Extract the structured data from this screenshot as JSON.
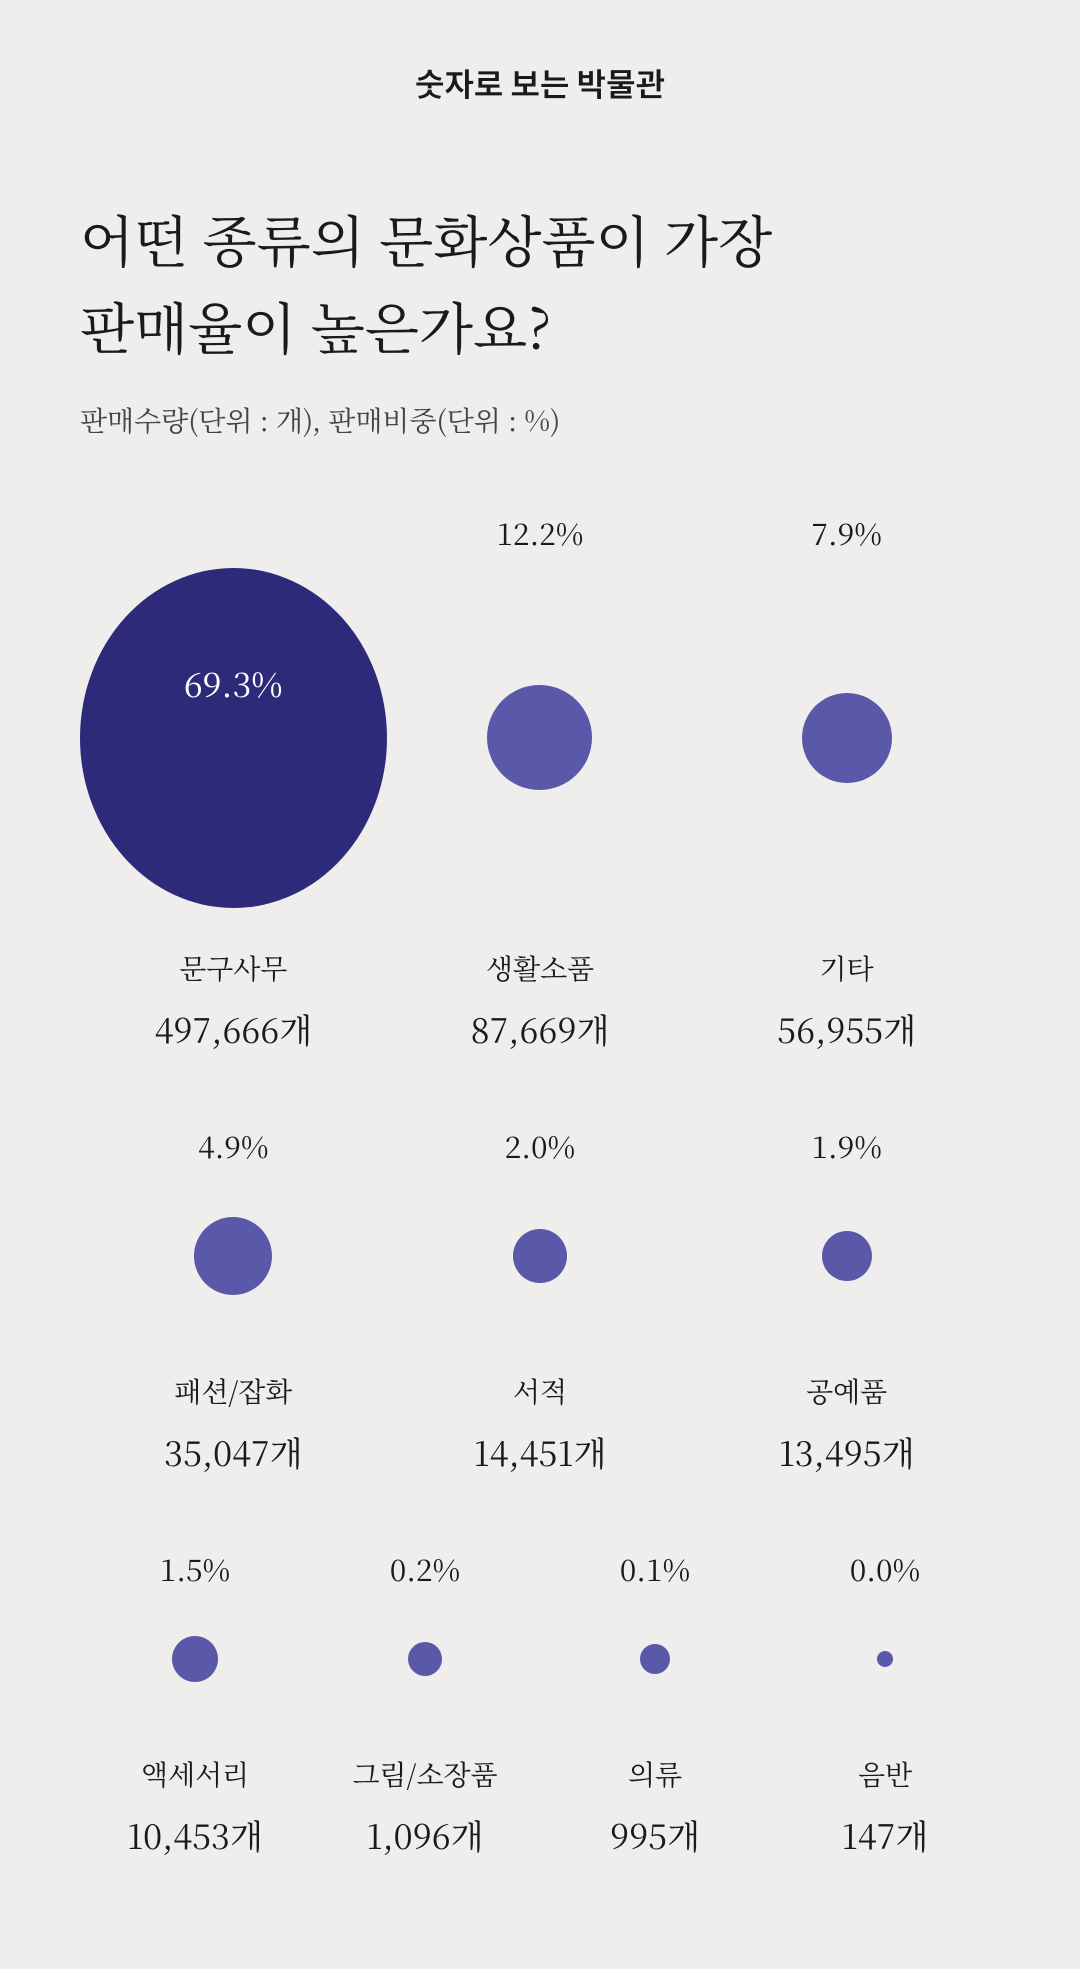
{
  "header_small": "숫자로 보는 박물관",
  "main_title": "어떤 종류의 문화상품이 가장\n판매율이 높은가요?",
  "subtitle": "판매수량(단위 : 개), 판매비중(단위 : %)",
  "background_color": "#f0eeed",
  "colors": {
    "big_circle": "#2e2a7a",
    "small_circle": "#5a58a8",
    "text": "#1a1a1a",
    "percent_inside": "#ffffff"
  },
  "rows": [
    {
      "cols": 3,
      "circle_box_height": 340,
      "items": [
        {
          "percent": "69.3%",
          "category": "문구사무",
          "count": "497,666개",
          "diameter": 340,
          "fill": "#2e2a7a",
          "percent_inside": true
        },
        {
          "percent": "12.2%",
          "category": "생활소품",
          "count": "87,669개",
          "diameter": 105,
          "fill": "#5a58a8",
          "percent_inside": false
        },
        {
          "percent": "7.9%",
          "category": "기타",
          "count": "56,955개",
          "diameter": 90,
          "fill": "#5a58a8",
          "percent_inside": false
        }
      ]
    },
    {
      "cols": 3,
      "circle_box_height": 150,
      "items": [
        {
          "percent": "4.9%",
          "category": "패션/잡화",
          "count": "35,047개",
          "diameter": 78,
          "fill": "#5a58a8",
          "percent_inside": false
        },
        {
          "percent": "2.0%",
          "category": "서적",
          "count": "14,451개",
          "diameter": 54,
          "fill": "#5a58a8",
          "percent_inside": false
        },
        {
          "percent": "1.9%",
          "category": "공예품",
          "count": "13,495개",
          "diameter": 50,
          "fill": "#5a58a8",
          "percent_inside": false
        }
      ]
    },
    {
      "cols": 4,
      "circle_box_height": 110,
      "items": [
        {
          "percent": "1.5%",
          "category": "액세서리",
          "count": "10,453개",
          "diameter": 46,
          "fill": "#5a58a8",
          "percent_inside": false
        },
        {
          "percent": "0.2%",
          "category": "그림/소장품",
          "count": "1,096개",
          "diameter": 34,
          "fill": "#5a58a8",
          "percent_inside": false
        },
        {
          "percent": "0.1%",
          "category": "의류",
          "count": "995개",
          "diameter": 30,
          "fill": "#5a58a8",
          "percent_inside": false
        },
        {
          "percent": "0.0%",
          "category": "음반",
          "count": "147개",
          "diameter": 16,
          "fill": "#5a58a8",
          "percent_inside": false
        }
      ]
    }
  ]
}
